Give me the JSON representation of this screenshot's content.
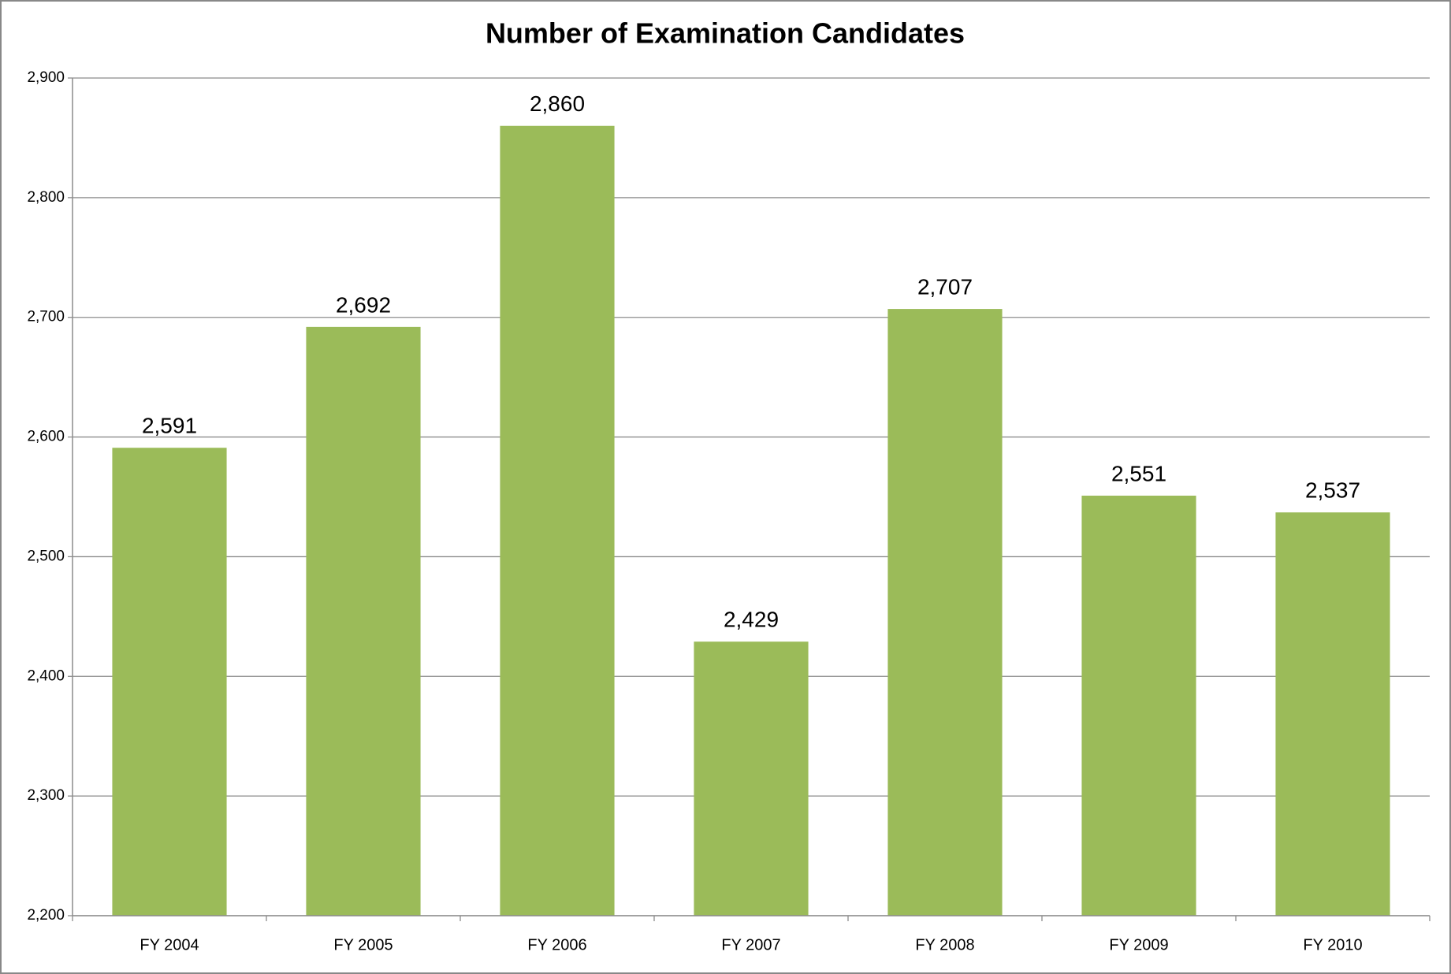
{
  "chart_data": {
    "type": "bar",
    "title": "Number of Examination Candidates",
    "categories": [
      "FY 2004",
      "FY 2005",
      "FY 2006",
      "FY 2007",
      "FY 2008",
      "FY 2009",
      "FY 2010"
    ],
    "values": [
      2591,
      2692,
      2860,
      2429,
      2707,
      2551,
      2537
    ],
    "value_labels": [
      "2,591",
      "2,692",
      "2,860",
      "2,429",
      "2,707",
      "2,551",
      "2,537"
    ],
    "color": "#9bbb59",
    "ylim": [
      2200,
      2900
    ],
    "yticks": [
      {
        "value": 2200,
        "label": "2,200"
      },
      {
        "value": 2300,
        "label": "2,300"
      },
      {
        "value": 2400,
        "label": "2,400"
      },
      {
        "value": 2500,
        "label": "2,500"
      },
      {
        "value": 2600,
        "label": "2,600"
      },
      {
        "value": 2700,
        "label": "2,700"
      },
      {
        "value": 2800,
        "label": "2,800"
      },
      {
        "value": 2900,
        "label": "2,900"
      }
    ],
    "grid": true
  }
}
